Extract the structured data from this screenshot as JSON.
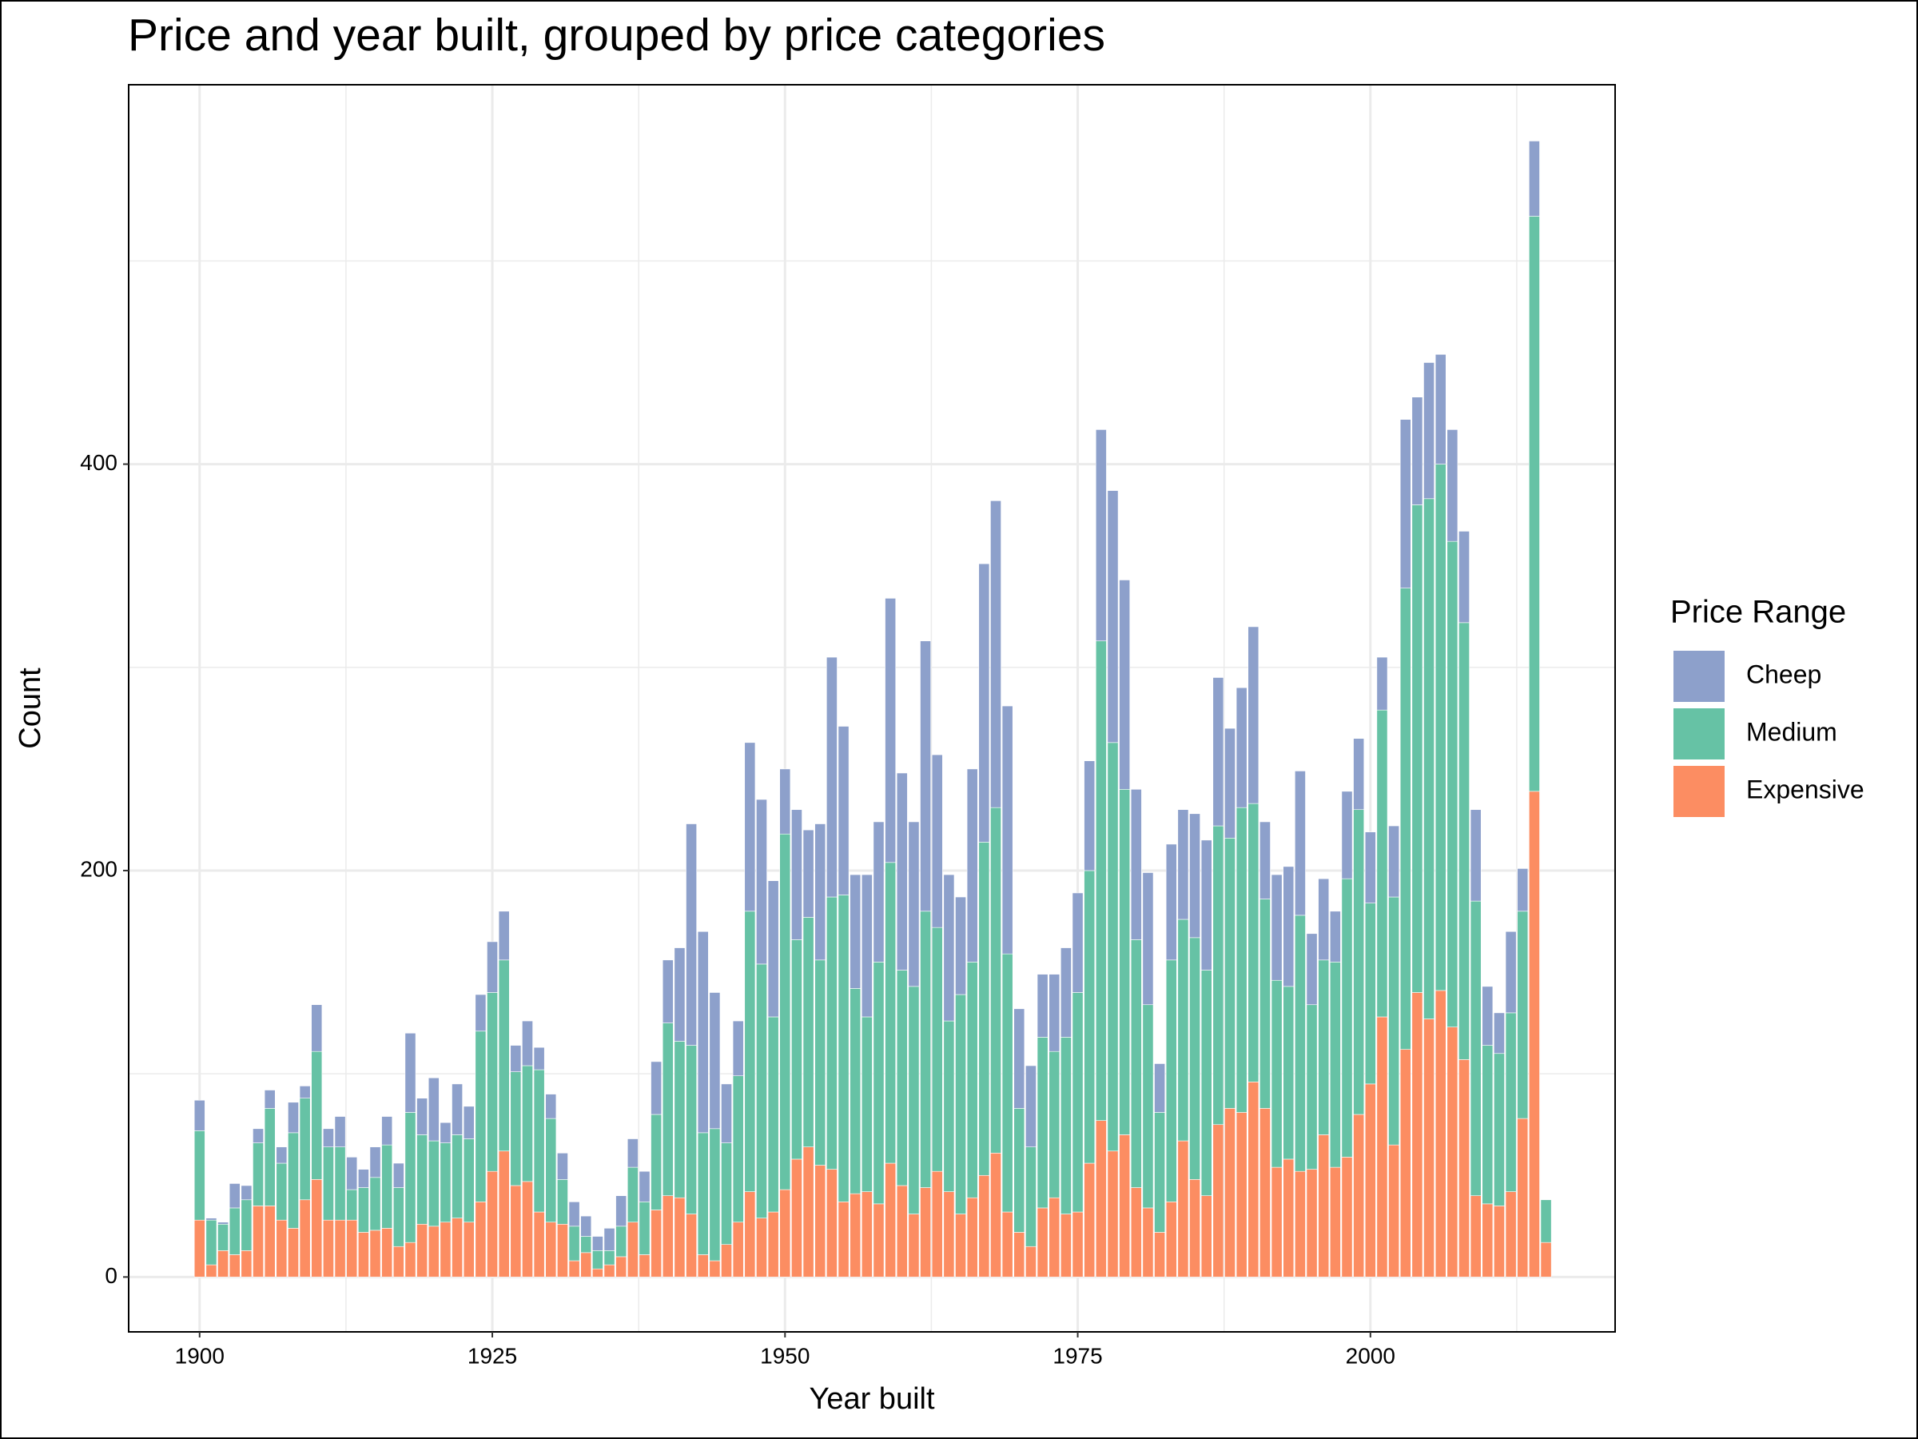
{
  "chart_data": {
    "type": "stacked-bar",
    "title": "Price and year built, grouped by price categories",
    "x_label": "Year built",
    "y_label": "Count",
    "legend_title": "Price Range",
    "x": [
      1900,
      1901,
      1902,
      1903,
      1904,
      1905,
      1906,
      1907,
      1908,
      1909,
      1910,
      1911,
      1912,
      1913,
      1914,
      1915,
      1916,
      1917,
      1918,
      1919,
      1920,
      1921,
      1922,
      1923,
      1924,
      1925,
      1926,
      1927,
      1928,
      1929,
      1930,
      1931,
      1932,
      1933,
      1934,
      1935,
      1936,
      1937,
      1938,
      1939,
      1940,
      1941,
      1942,
      1943,
      1944,
      1945,
      1946,
      1947,
      1948,
      1949,
      1950,
      1951,
      1952,
      1953,
      1954,
      1955,
      1956,
      1957,
      1958,
      1959,
      1960,
      1961,
      1962,
      1963,
      1964,
      1965,
      1966,
      1967,
      1968,
      1969,
      1970,
      1971,
      1972,
      1973,
      1974,
      1975,
      1976,
      1977,
      1978,
      1979,
      1980,
      1981,
      1982,
      1983,
      1984,
      1985,
      1986,
      1987,
      1988,
      1989,
      1990,
      1991,
      1992,
      1993,
      1994,
      1995,
      1996,
      1997,
      1998,
      1999,
      2000,
      2001,
      2002,
      2003,
      2004,
      2005,
      2006,
      2007,
      2008,
      2009,
      2010,
      2011,
      2012,
      2013,
      2014,
      2015
    ],
    "series": [
      {
        "name": "Cheep",
        "color": "#8da0cb",
        "values": [
          15,
          1,
          1,
          12,
          7,
          7,
          9,
          8,
          15,
          6,
          23,
          9,
          15,
          16,
          9,
          15,
          14,
          12,
          39,
          18,
          31,
          10,
          25,
          16,
          18,
          25,
          24,
          13,
          22,
          11,
          12,
          13,
          12,
          10,
          7,
          11,
          15,
          14,
          15,
          26,
          31,
          46,
          109,
          99,
          67,
          29,
          27,
          83,
          81,
          67,
          32,
          64,
          43,
          67,
          118,
          83,
          56,
          70,
          69,
          130,
          97,
          81,
          133,
          85,
          72,
          48,
          95,
          137,
          151,
          122,
          49,
          40,
          31,
          38,
          44,
          49,
          54,
          104,
          124,
          103,
          74,
          65,
          24,
          57,
          54,
          61,
          64,
          73,
          54,
          59,
          87,
          38,
          52,
          59,
          71,
          35,
          40,
          25,
          43,
          35,
          35,
          26,
          35,
          83,
          53,
          67,
          54,
          55,
          45,
          45,
          29,
          20,
          40,
          21,
          37,
          0
        ]
      },
      {
        "name": "Medium",
        "color": "#66c2a5",
        "values": [
          44,
          22,
          13,
          23,
          25,
          31,
          48,
          28,
          47,
          50,
          63,
          36,
          36,
          15,
          22,
          26,
          41,
          29,
          64,
          44,
          42,
          39,
          41,
          41,
          84,
          88,
          94,
          56,
          57,
          70,
          51,
          22,
          17,
          8,
          9,
          7,
          15,
          27,
          26,
          47,
          85,
          77,
          83,
          60,
          65,
          50,
          72,
          138,
          125,
          96,
          175,
          108,
          113,
          101,
          134,
          151,
          101,
          86,
          119,
          148,
          106,
          112,
          136,
          120,
          84,
          108,
          116,
          164,
          170,
          127,
          61,
          49,
          84,
          72,
          87,
          108,
          144,
          236,
          201,
          170,
          122,
          100,
          59,
          119,
          109,
          119,
          111,
          147,
          133,
          150,
          137,
          103,
          92,
          85,
          126,
          81,
          86,
          101,
          137,
          150,
          89,
          151,
          122,
          227,
          240,
          256,
          259,
          239,
          215,
          145,
          78,
          75,
          88,
          102,
          283,
          21
        ]
      },
      {
        "name": "Expensive",
        "color": "#fc8d62",
        "values": [
          28,
          6,
          13,
          11,
          13,
          35,
          35,
          28,
          24,
          38,
          48,
          28,
          28,
          28,
          22,
          23,
          24,
          15,
          17,
          26,
          25,
          27,
          29,
          27,
          37,
          52,
          62,
          45,
          47,
          32,
          27,
          26,
          8,
          12,
          4,
          6,
          10,
          27,
          11,
          33,
          40,
          39,
          31,
          11,
          8,
          16,
          27,
          42,
          29,
          32,
          43,
          58,
          64,
          55,
          53,
          37,
          41,
          42,
          36,
          56,
          45,
          31,
          44,
          52,
          42,
          31,
          39,
          50,
          61,
          32,
          22,
          15,
          34,
          39,
          31,
          32,
          56,
          77,
          62,
          70,
          44,
          34,
          22,
          37,
          67,
          48,
          40,
          75,
          83,
          81,
          96,
          83,
          54,
          58,
          52,
          53,
          70,
          54,
          59,
          80,
          95,
          128,
          65,
          112,
          140,
          127,
          141,
          123,
          107,
          40,
          36,
          35,
          42,
          78,
          239,
          17
        ]
      }
    ],
    "xlim": [
      1893.94,
      2020.9
    ],
    "ylim": [
      -27,
      586.7
    ],
    "xticks": [
      1900,
      1925,
      1950,
      1975,
      2000
    ],
    "yticks": [
      0,
      200,
      400
    ],
    "xminor": [
      1912.5,
      1937.5,
      1962.5,
      1987.5,
      2012.5
    ],
    "yminor": [
      100,
      300,
      500
    ],
    "grid": true
  }
}
